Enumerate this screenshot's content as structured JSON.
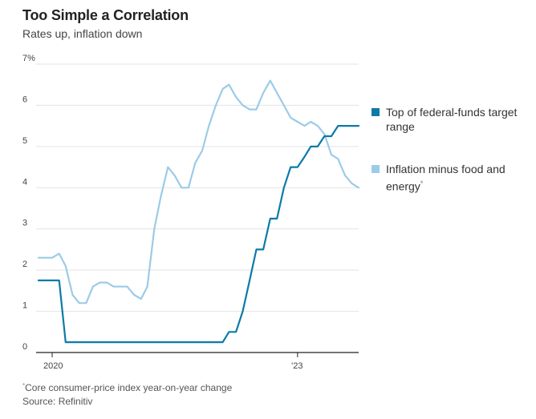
{
  "title": "Too Simple a Correlation",
  "subtitle": "Rates up, inflation down",
  "colors": {
    "fed_funds": "#0d7aa8",
    "inflation": "#9ccbe8",
    "grid": "#e3e3e3",
    "axis": "#222222"
  },
  "legend": {
    "fed_funds_label": "Top of federal-funds target range",
    "inflation_label": "Inflation minus food and energy",
    "inflation_mark": "*"
  },
  "footnote": {
    "mark": "*",
    "text": "Core consumer-price index year-on-year change"
  },
  "source": "Source: Refinitiv",
  "chart_data": {
    "type": "line",
    "ylim": [
      0,
      7
    ],
    "y_ticks": [
      "0",
      "1",
      "2",
      "3",
      "4",
      "5",
      "6",
      "7%"
    ],
    "x_ticks": [
      "2020",
      "’23"
    ],
    "grid": "horizontal",
    "legend_position": "right",
    "series": [
      {
        "name": "Top of federal-funds target range",
        "key": "fed_funds",
        "x": [
          "2019-11",
          "2019-12",
          "2020-01",
          "2020-02",
          "2020-03",
          "2020-04",
          "2020-05",
          "2020-06",
          "2020-07",
          "2020-08",
          "2020-09",
          "2020-10",
          "2020-11",
          "2020-12",
          "2021-01",
          "2021-02",
          "2021-03",
          "2021-04",
          "2021-05",
          "2021-06",
          "2021-07",
          "2021-08",
          "2021-09",
          "2021-10",
          "2021-11",
          "2021-12",
          "2022-01",
          "2022-02",
          "2022-03",
          "2022-04",
          "2022-05",
          "2022-06",
          "2022-07",
          "2022-08",
          "2022-09",
          "2022-10",
          "2022-11",
          "2022-12",
          "2023-01",
          "2023-02",
          "2023-03",
          "2023-04",
          "2023-05",
          "2023-06",
          "2023-07",
          "2023-08",
          "2023-09",
          "2023-10"
        ],
        "values": [
          1.75,
          1.75,
          1.75,
          1.75,
          0.25,
          0.25,
          0.25,
          0.25,
          0.25,
          0.25,
          0.25,
          0.25,
          0.25,
          0.25,
          0.25,
          0.25,
          0.25,
          0.25,
          0.25,
          0.25,
          0.25,
          0.25,
          0.25,
          0.25,
          0.25,
          0.25,
          0.25,
          0.25,
          0.5,
          0.5,
          1.0,
          1.75,
          2.5,
          2.5,
          3.25,
          3.25,
          4.0,
          4.5,
          4.5,
          4.75,
          5.0,
          5.0,
          5.25,
          5.25,
          5.5,
          5.5,
          5.5,
          5.5
        ]
      },
      {
        "name": "Inflation minus food and energy",
        "key": "inflation",
        "x": [
          "2019-11",
          "2019-12",
          "2020-01",
          "2020-02",
          "2020-03",
          "2020-04",
          "2020-05",
          "2020-06",
          "2020-07",
          "2020-08",
          "2020-09",
          "2020-10",
          "2020-11",
          "2020-12",
          "2021-01",
          "2021-02",
          "2021-03",
          "2021-04",
          "2021-05",
          "2021-06",
          "2021-07",
          "2021-08",
          "2021-09",
          "2021-10",
          "2021-11",
          "2021-12",
          "2022-01",
          "2022-02",
          "2022-03",
          "2022-04",
          "2022-05",
          "2022-06",
          "2022-07",
          "2022-08",
          "2022-09",
          "2022-10",
          "2022-11",
          "2022-12",
          "2023-01",
          "2023-02",
          "2023-03",
          "2023-04",
          "2023-05",
          "2023-06",
          "2023-07",
          "2023-08",
          "2023-09",
          "2023-10"
        ],
        "values": [
          2.3,
          2.3,
          2.3,
          2.4,
          2.1,
          1.4,
          1.2,
          1.2,
          1.6,
          1.7,
          1.7,
          1.6,
          1.6,
          1.6,
          1.4,
          1.3,
          1.6,
          3.0,
          3.8,
          4.5,
          4.3,
          4.0,
          4.0,
          4.6,
          4.9,
          5.5,
          6.0,
          6.4,
          6.5,
          6.2,
          6.0,
          5.9,
          5.9,
          6.3,
          6.6,
          6.3,
          6.0,
          5.7,
          5.6,
          5.5,
          5.6,
          5.5,
          5.3,
          4.8,
          4.7,
          4.3,
          4.1,
          4.0
        ]
      }
    ]
  }
}
